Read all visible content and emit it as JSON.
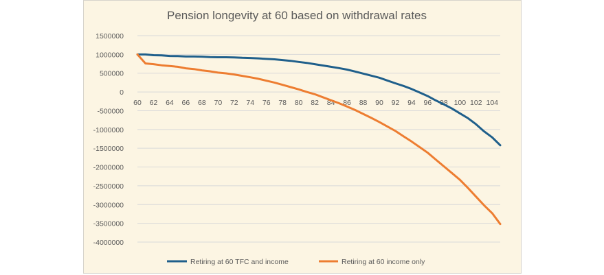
{
  "chart_data": {
    "type": "line",
    "title": "Pension longevity at 60 based on withdrawal rates",
    "xlabel": "",
    "ylabel": "",
    "ylim": [
      -4000000,
      1500000
    ],
    "ytick_step": 500000,
    "x": [
      60,
      61,
      62,
      63,
      64,
      65,
      66,
      67,
      68,
      69,
      70,
      71,
      72,
      73,
      74,
      75,
      76,
      77,
      78,
      79,
      80,
      81,
      82,
      83,
      84,
      85,
      86,
      87,
      88,
      89,
      90,
      91,
      92,
      93,
      94,
      95,
      96,
      97,
      98,
      99,
      100,
      101,
      102,
      103,
      104,
      105
    ],
    "xtick_labels": [
      "60",
      "62",
      "64",
      "66",
      "68",
      "70",
      "72",
      "74",
      "76",
      "78",
      "80",
      "82",
      "84",
      "86",
      "88",
      "90",
      "92",
      "94",
      "96",
      "98",
      "100",
      "102",
      "104"
    ],
    "grid": "horizontal",
    "legend": "bottom",
    "colors": {
      "tfc_income": "#1f5f8b",
      "income_only": "#ed7d31"
    },
    "series": [
      {
        "name": "Retiring at 60 TFC and income",
        "values": [
          1000000,
          1000000,
          980000,
          975000,
          960000,
          955000,
          945000,
          945000,
          940000,
          930000,
          925000,
          925000,
          920000,
          910000,
          905000,
          895000,
          880000,
          870000,
          850000,
          830000,
          800000,
          775000,
          740000,
          705000,
          670000,
          635000,
          595000,
          545000,
          490000,
          435000,
          380000,
          305000,
          230000,
          160000,
          80000,
          -15000,
          -110000,
          -225000,
          -330000,
          -440000,
          -570000,
          -700000,
          -860000,
          -1050000,
          -1210000,
          -1420000
        ]
      },
      {
        "name": "Retiring at 60 income only",
        "values": [
          1000000,
          760000,
          740000,
          710000,
          690000,
          670000,
          630000,
          610000,
          575000,
          550000,
          515000,
          495000,
          465000,
          430000,
          390000,
          350000,
          300000,
          250000,
          190000,
          130000,
          70000,
          0,
          -60000,
          -140000,
          -220000,
          -300000,
          -390000,
          -480000,
          -585000,
          -690000,
          -800000,
          -920000,
          -1040000,
          -1180000,
          -1320000,
          -1470000,
          -1620000,
          -1800000,
          -1980000,
          -2160000,
          -2340000,
          -2560000,
          -2790000,
          -3020000,
          -3230000,
          -3520000
        ]
      }
    ]
  }
}
